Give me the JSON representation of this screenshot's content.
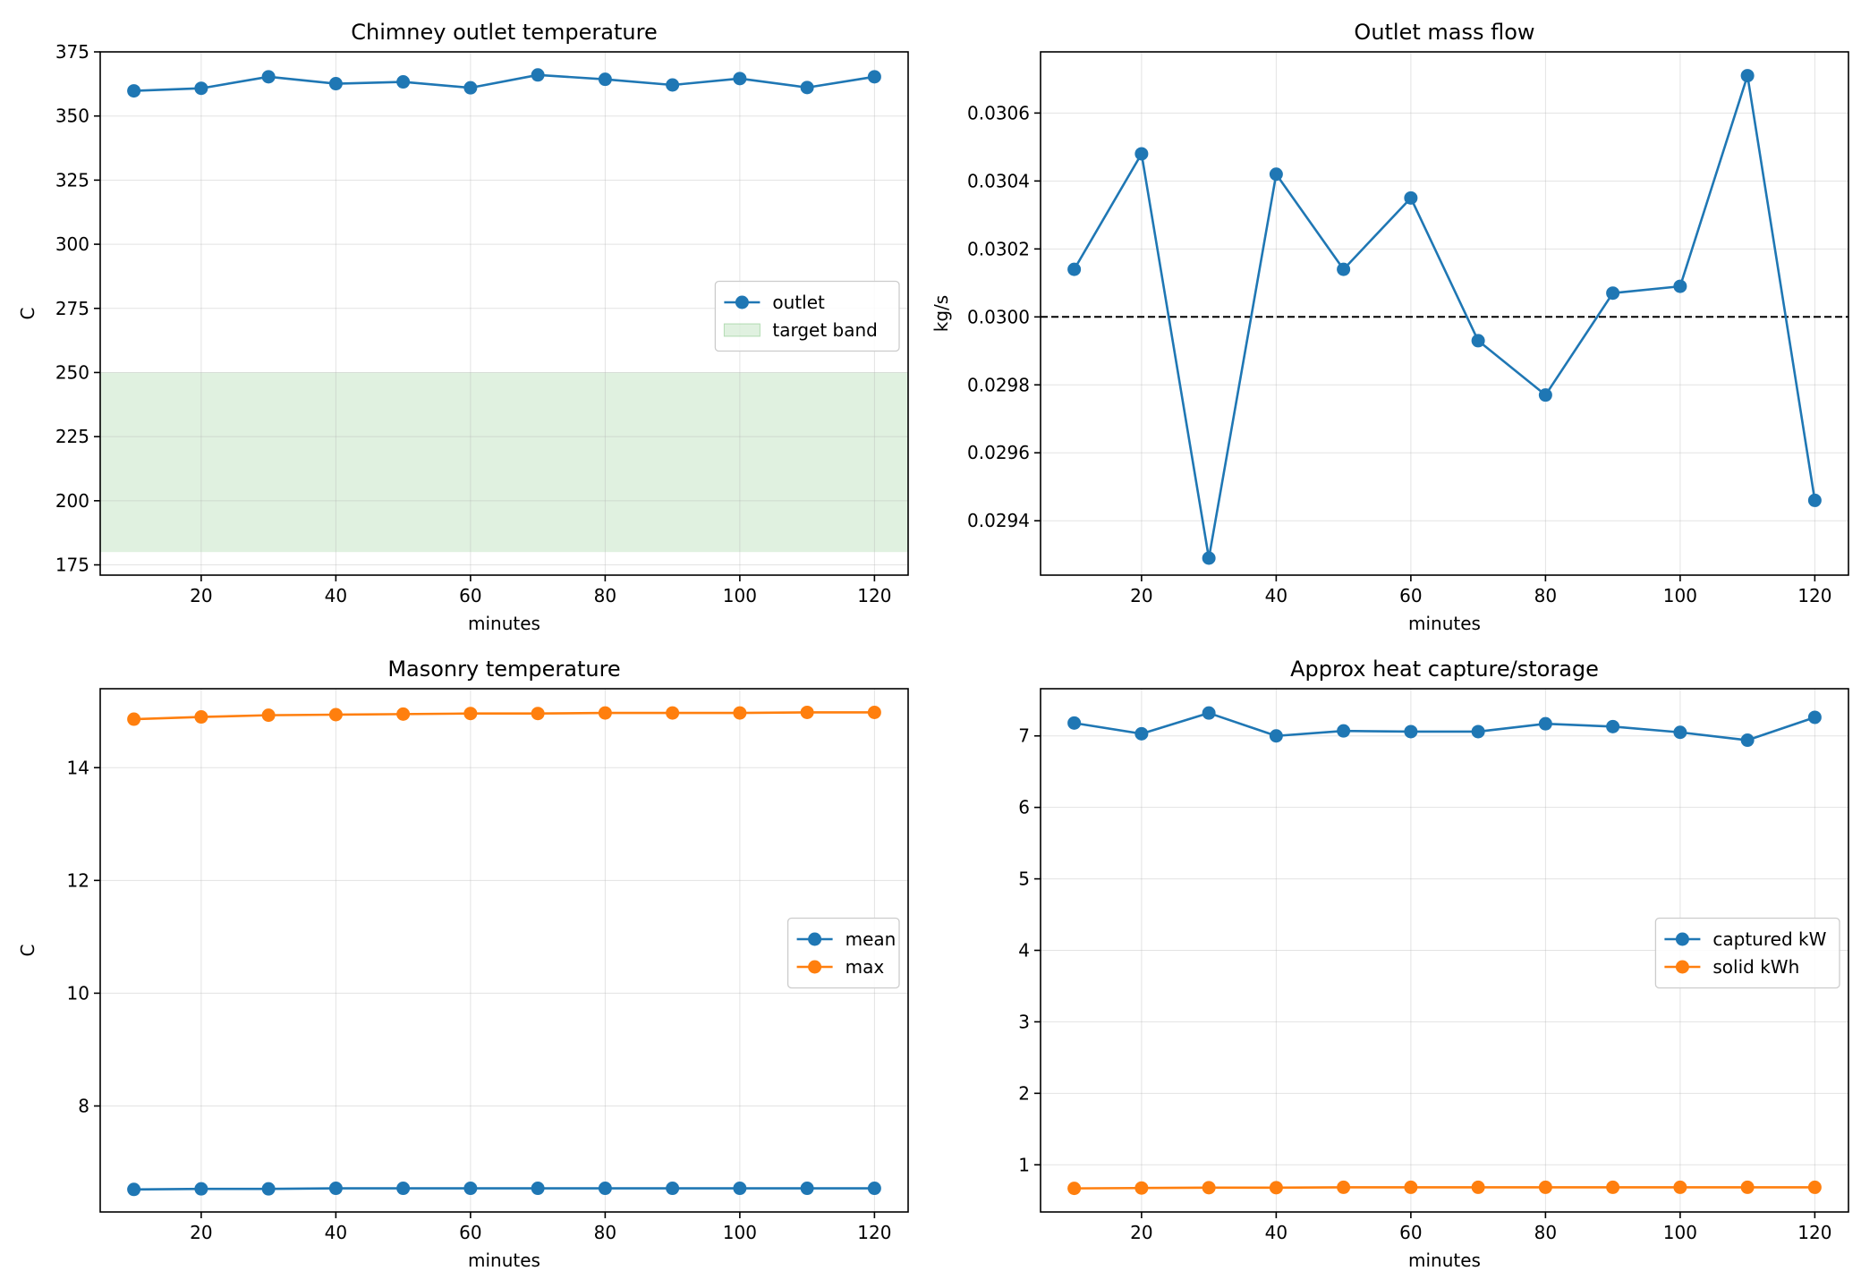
{
  "chart_data": [
    {
      "type": "line",
      "title": "Chimney outlet temperature",
      "xlabel": "minutes",
      "ylabel": "C",
      "xlim": [
        5,
        125
      ],
      "ylim": [
        171,
        375
      ],
      "xticks": [
        20,
        40,
        60,
        80,
        100,
        120
      ],
      "yticks": [
        175,
        200,
        225,
        250,
        275,
        300,
        325,
        350,
        375
      ],
      "grid": true,
      "legend": "center-right",
      "x": [
        10,
        20,
        30,
        40,
        50,
        60,
        70,
        80,
        90,
        100,
        110,
        120
      ],
      "series": [
        {
          "name": "outlet",
          "color": "#1f77b4",
          "marker": "circle",
          "values": [
            359.8,
            360.8,
            365.3,
            362.6,
            363.3,
            361.0,
            366.0,
            364.3,
            362.1,
            364.6,
            361.1,
            365.3
          ]
        }
      ],
      "bands": [
        {
          "name": "target band",
          "from": 180,
          "to": 250,
          "color": "#2ca02c",
          "opacity": 0.15
        }
      ]
    },
    {
      "type": "line",
      "title": "Outlet mass flow",
      "xlabel": "minutes",
      "ylabel": "kg/s",
      "xlim": [
        5,
        125
      ],
      "ylim": [
        0.02924,
        0.03078
      ],
      "xticks": [
        20,
        40,
        60,
        80,
        100,
        120
      ],
      "yticks": [
        0.0294,
        0.0296,
        0.0298,
        0.03,
        0.0302,
        0.0304,
        0.0306
      ],
      "ytick_decimals": 4,
      "grid": true,
      "x": [
        10,
        20,
        30,
        40,
        50,
        60,
        70,
        80,
        90,
        100,
        110,
        120
      ],
      "series": [
        {
          "color": "#1f77b4",
          "marker": "circle",
          "values": [
            0.03014,
            0.03048,
            0.02929,
            0.03042,
            0.03014,
            0.03035,
            0.02993,
            0.02977,
            0.03007,
            0.03009,
            0.03071,
            0.02946
          ]
        }
      ],
      "reference_lines": [
        {
          "y": 0.03,
          "style": "dashed",
          "color": "#000000"
        }
      ]
    },
    {
      "type": "line",
      "title": "Masonry temperature",
      "xlabel": "minutes",
      "ylabel": "C",
      "xlim": [
        5,
        125
      ],
      "ylim": [
        6.12,
        15.4
      ],
      "xticks": [
        20,
        40,
        60,
        80,
        100,
        120
      ],
      "yticks": [
        8,
        10,
        12,
        14
      ],
      "grid": true,
      "legend": "center-right",
      "x": [
        10,
        20,
        30,
        40,
        50,
        60,
        70,
        80,
        90,
        100,
        110,
        120
      ],
      "series": [
        {
          "name": "mean",
          "color": "#1f77b4",
          "marker": "circle",
          "values": [
            6.52,
            6.53,
            6.53,
            6.54,
            6.54,
            6.54,
            6.54,
            6.54,
            6.54,
            6.54,
            6.54,
            6.54
          ]
        },
        {
          "name": "max",
          "color": "#ff7f0e",
          "marker": "circle",
          "values": [
            14.86,
            14.9,
            14.93,
            14.94,
            14.95,
            14.96,
            14.96,
            14.97,
            14.97,
            14.97,
            14.98,
            14.98
          ]
        }
      ]
    },
    {
      "type": "line",
      "title": "Approx heat capture/storage",
      "xlabel": "minutes",
      "ylabel": "",
      "xlim": [
        5,
        125
      ],
      "ylim": [
        0.34,
        7.66
      ],
      "xticks": [
        20,
        40,
        60,
        80,
        100,
        120
      ],
      "yticks": [
        1,
        2,
        3,
        4,
        5,
        6,
        7
      ],
      "grid": true,
      "legend": "center-right",
      "x": [
        10,
        20,
        30,
        40,
        50,
        60,
        70,
        80,
        90,
        100,
        110,
        120
      ],
      "series": [
        {
          "name": "captured kW",
          "color": "#1f77b4",
          "marker": "circle",
          "values": [
            7.18,
            7.03,
            7.32,
            7.0,
            7.07,
            7.06,
            7.06,
            7.17,
            7.13,
            7.05,
            6.94,
            7.26
          ]
        },
        {
          "name": "solid kWh",
          "color": "#ff7f0e",
          "marker": "circle",
          "values": [
            0.67,
            0.675,
            0.68,
            0.68,
            0.685,
            0.685,
            0.685,
            0.685,
            0.685,
            0.685,
            0.685,
            0.685
          ]
        }
      ]
    }
  ]
}
